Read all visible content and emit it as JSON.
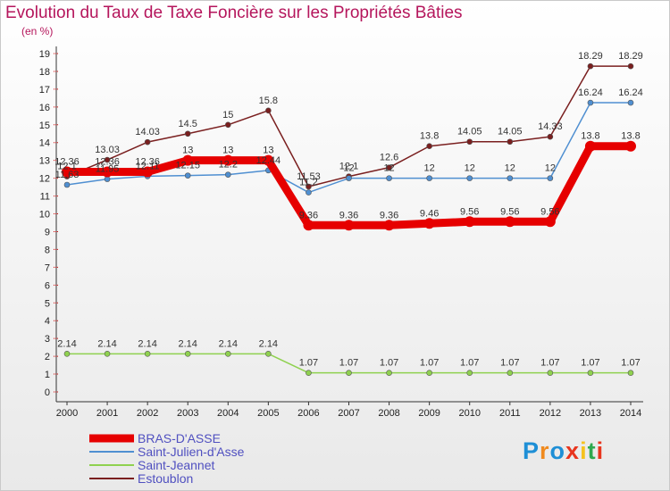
{
  "chart_data": {
    "type": "line",
    "title": "Evolution du Taux de Taxe Foncière sur les Propriétés Bâties",
    "ylabel": "(en %)",
    "xlabel": "",
    "ylim": [
      0,
      19
    ],
    "yticks": [
      "0",
      "1",
      "2",
      "3",
      "4",
      "5",
      "6",
      "7",
      "8",
      "9",
      "10",
      "11",
      "12",
      "13",
      "14",
      "15",
      "16",
      "17",
      "18",
      "19"
    ],
    "categories": [
      "2000",
      "2001",
      "2002",
      "2003",
      "2004",
      "2005",
      "2006",
      "2007",
      "2008",
      "2009",
      "2010",
      "2011",
      "2012",
      "2013",
      "2014"
    ],
    "series": [
      {
        "name": "BRAS-D'ASSE",
        "color": "#e60000",
        "width": 9,
        "dot": 6,
        "values": [
          12.36,
          12.36,
          12.36,
          13,
          13,
          13,
          9.36,
          9.36,
          9.36,
          9.46,
          9.56,
          9.56,
          9.56,
          13.8,
          13.8
        ],
        "labels": [
          "12.36",
          "12.36",
          "12.36",
          "13",
          "13",
          "13",
          "9.36",
          "9.36",
          "9.36",
          "9.46",
          "9.56",
          "9.56",
          "9.56",
          "13.8",
          "13.8"
        ]
      },
      {
        "name": "Saint-Julien-d'Asse",
        "color": "#4f8fd1",
        "width": 1.5,
        "dot": 3,
        "values": [
          11.63,
          11.95,
          12.11,
          12.15,
          12.2,
          12.44,
          11.2,
          12,
          12,
          12,
          12,
          12,
          12,
          16.24,
          16.24
        ],
        "labels": [
          "11.63",
          "11.95",
          "12.11",
          "12.15",
          "12.2",
          "12.44",
          "11.2",
          "12",
          "12",
          "12",
          "12",
          "12",
          "12",
          "16.24",
          "16.24"
        ]
      },
      {
        "name": "Saint-Jeannet",
        "color": "#8fd14f",
        "width": 1.5,
        "dot": 3,
        "values": [
          2.14,
          2.14,
          2.14,
          2.14,
          2.14,
          2.14,
          1.07,
          1.07,
          1.07,
          1.07,
          1.07,
          1.07,
          1.07,
          1.07,
          1.07
        ],
        "labels": [
          "2.14",
          "2.14",
          "2.14",
          "2.14",
          "2.14",
          "2.14",
          "1.07",
          "1.07",
          "1.07",
          "1.07",
          "1.07",
          "1.07",
          "1.07",
          "1.07",
          "1.07"
        ]
      },
      {
        "name": "Estoublon",
        "color": "#7a1f1f",
        "width": 1.5,
        "dot": 3,
        "values": [
          12.1,
          13.03,
          14.03,
          14.5,
          15,
          15.8,
          11.53,
          12.1,
          12.6,
          13.8,
          14.05,
          14.05,
          14.33,
          18.29,
          18.29
        ],
        "labels": [
          "12.1",
          "13.03",
          "14.03",
          "14.5",
          "15",
          "15.8",
          "11.53",
          "12.1",
          "12.6",
          "13.8",
          "14.05",
          "14.05",
          "14.33",
          "18.29",
          "18.29"
        ]
      }
    ],
    "legend_position": "bottom-left",
    "grid": false
  },
  "brand": {
    "text": "Proxiti",
    "colors": [
      "#1e8fd6",
      "#f08a1e",
      "#1e8fd6",
      "#e8351e",
      "#f5c21e",
      "#2fa84f",
      "#e8351e"
    ]
  }
}
